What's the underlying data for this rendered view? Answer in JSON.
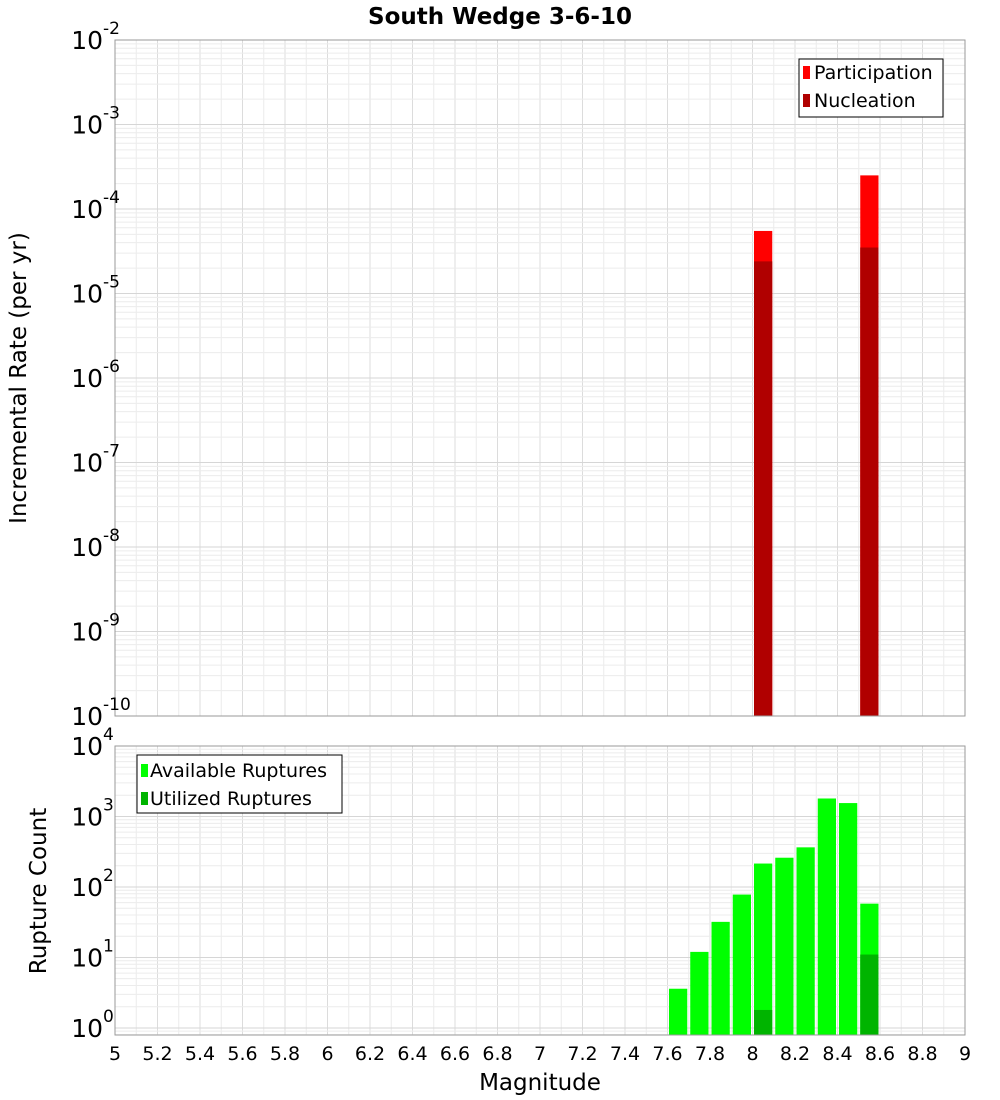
{
  "chart_data": [
    {
      "type": "bar",
      "title": "South Wedge 3-6-10",
      "xlabel": "Magnitude",
      "ylabel": "Incremental Rate (per yr)",
      "yscale": "log",
      "ylim_exponents": [
        -10,
        -2
      ],
      "y_tick_base": "10",
      "y_tick_exponents": [
        "-10",
        "-9",
        "-8",
        "-7",
        "-6",
        "-5",
        "-4",
        "-3",
        "-2"
      ],
      "xlim": [
        5,
        9
      ],
      "bin_width": 0.1,
      "grid": true,
      "legend_position": "top-right",
      "series": [
        {
          "name": "Participation",
          "color": "#ff0000",
          "x": [
            8.05,
            8.55
          ],
          "values": [
            5.5e-05,
            0.00025
          ]
        },
        {
          "name": "Nucleation",
          "color": "#b00000",
          "x": [
            8.05,
            8.55
          ],
          "values": [
            2.4e-05,
            3.5e-05
          ]
        }
      ]
    },
    {
      "type": "bar",
      "title": "",
      "xlabel": "Magnitude",
      "ylabel": "Rupture Count",
      "yscale": "log",
      "ylim_exponents": [
        -0.1,
        4
      ],
      "y_tick_base": "10",
      "y_tick_exponents": [
        "0",
        "1",
        "2",
        "3",
        "4"
      ],
      "xlim": [
        5,
        9
      ],
      "x_ticks": [
        "5",
        "5.2",
        "5.4",
        "5.6",
        "5.8",
        "6",
        "6.2",
        "6.4",
        "6.6",
        "6.8",
        "7",
        "7.2",
        "7.4",
        "7.6",
        "7.8",
        "8",
        "8.2",
        "8.4",
        "8.6",
        "8.8",
        "9"
      ],
      "bin_width": 0.1,
      "grid": true,
      "legend_position": "top-left",
      "series": [
        {
          "name": "Available Ruptures",
          "color": "#00ff00",
          "x": [
            7.65,
            7.75,
            7.85,
            7.95,
            8.05,
            8.15,
            8.25,
            8.35,
            8.45,
            8.55
          ],
          "values": [
            3.6,
            12,
            32,
            78,
            215,
            260,
            365,
            1800,
            1550,
            58
          ]
        },
        {
          "name": "Utilized Ruptures",
          "color": "#00b400",
          "x": [
            8.05,
            8.55
          ],
          "values": [
            1.8,
            11
          ]
        }
      ]
    }
  ]
}
